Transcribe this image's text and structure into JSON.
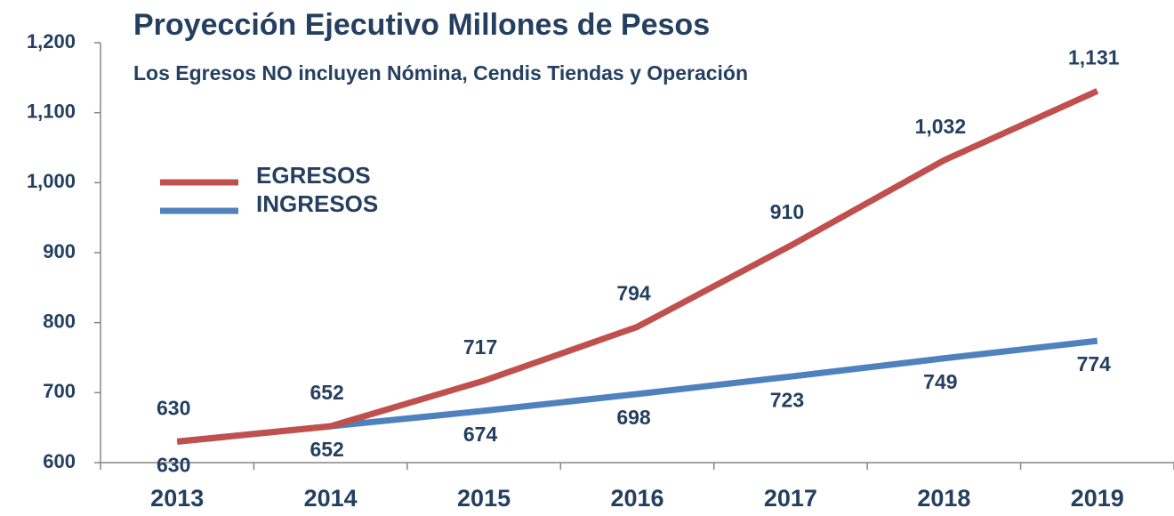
{
  "chart_data": {
    "type": "line",
    "title": "Proyección Ejecutivo Millones de Pesos",
    "subtitle": "Los Egresos NO incluyen Nómina, Cendis Tiendas y Operación",
    "categories": [
      "2013",
      "2014",
      "2015",
      "2016",
      "2017",
      "2018",
      "2019"
    ],
    "series": [
      {
        "name": "EGRESOS",
        "color": "#c0504d",
        "values": [
          630,
          652,
          717,
          794,
          910,
          1032,
          1131
        ],
        "value_labels": [
          "630",
          "652",
          "717",
          "794",
          "910",
          "1,032",
          "1,131"
        ]
      },
      {
        "name": "INGRESOS",
        "color": "#4f81bd",
        "values": [
          630,
          652,
          674,
          698,
          723,
          749,
          774
        ]
      }
    ],
    "ylim": [
      600,
      1200
    ],
    "yticks": [
      600,
      700,
      800,
      900,
      {
        "value": 1000,
        "label": "1,000"
      },
      {
        "value": 1100,
        "label": "1,100"
      },
      {
        "value": 1200,
        "label": "1,200"
      }
    ],
    "grid": false,
    "legend": "upper left"
  }
}
